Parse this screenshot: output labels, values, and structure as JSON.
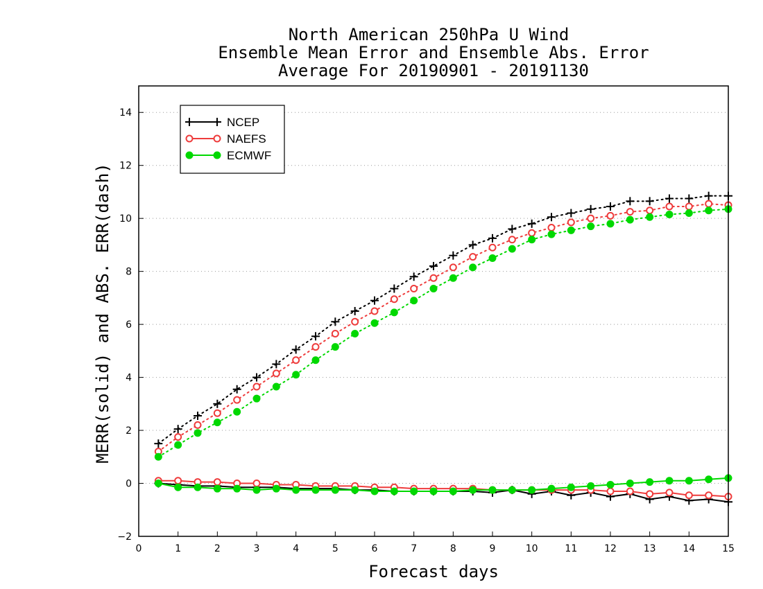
{
  "chart_data": {
    "type": "line",
    "title_lines": [
      "North American 250hPa U Wind",
      "Ensemble Mean Error and Ensemble Abs. Error",
      "Average For 20190901 - 20191130"
    ],
    "xlabel": "Forecast days",
    "ylabel": "MERR(solid) and ABS. ERR(dash)",
    "xlim": [
      0,
      15
    ],
    "ylim": [
      -2,
      15
    ],
    "xticks": [
      0,
      1,
      2,
      3,
      4,
      5,
      6,
      7,
      8,
      9,
      10,
      11,
      12,
      13,
      14,
      15
    ],
    "yticks": [
      -2,
      0,
      2,
      4,
      6,
      8,
      10,
      12,
      14
    ],
    "grid": "horizontal dotted",
    "legend_position": "top-left",
    "x": [
      0.5,
      1,
      1.5,
      2,
      2.5,
      3,
      3.5,
      4,
      4.5,
      5,
      5.5,
      6,
      6.5,
      7,
      7.5,
      8,
      8.5,
      9,
      9.5,
      10,
      10.5,
      11,
      11.5,
      12,
      12.5,
      13,
      13.5,
      14,
      14.5,
      15
    ],
    "series": [
      {
        "name": "NCEP",
        "color": "#000000",
        "marker": "plus",
        "abs_err": [
          1.5,
          2.05,
          2.55,
          3.0,
          3.55,
          4.0,
          4.5,
          5.05,
          5.55,
          6.1,
          6.5,
          6.9,
          7.35,
          7.8,
          8.2,
          8.6,
          9.0,
          9.25,
          9.6,
          9.8,
          10.05,
          10.2,
          10.35,
          10.45,
          10.65,
          10.65,
          10.75,
          10.75,
          10.85,
          10.85
        ],
        "mean_err": [
          0.0,
          -0.05,
          -0.1,
          -0.1,
          -0.15,
          -0.15,
          -0.15,
          -0.2,
          -0.2,
          -0.2,
          -0.25,
          -0.25,
          -0.3,
          -0.3,
          -0.3,
          -0.3,
          -0.3,
          -0.35,
          -0.25,
          -0.4,
          -0.3,
          -0.45,
          -0.35,
          -0.5,
          -0.4,
          -0.6,
          -0.5,
          -0.65,
          -0.6,
          -0.7
        ]
      },
      {
        "name": "NAEFS",
        "color": "#ee3b3b",
        "marker": "open-circle",
        "abs_err": [
          1.2,
          1.75,
          2.2,
          2.65,
          3.15,
          3.65,
          4.15,
          4.65,
          5.15,
          5.65,
          6.1,
          6.5,
          6.95,
          7.35,
          7.75,
          8.15,
          8.55,
          8.9,
          9.2,
          9.45,
          9.65,
          9.85,
          10.0,
          10.1,
          10.25,
          10.3,
          10.45,
          10.45,
          10.55,
          10.5
        ],
        "mean_err": [
          0.1,
          0.1,
          0.05,
          0.05,
          0.0,
          0.0,
          -0.05,
          -0.05,
          -0.1,
          -0.1,
          -0.1,
          -0.15,
          -0.15,
          -0.2,
          -0.2,
          -0.2,
          -0.2,
          -0.25,
          -0.25,
          -0.25,
          -0.25,
          -0.25,
          -0.25,
          -0.3,
          -0.3,
          -0.4,
          -0.35,
          -0.45,
          -0.45,
          -0.5
        ]
      },
      {
        "name": "ECMWF",
        "color": "#00d800",
        "marker": "filled-circle",
        "abs_err": [
          1.0,
          1.45,
          1.9,
          2.3,
          2.7,
          3.2,
          3.65,
          4.1,
          4.65,
          5.15,
          5.65,
          6.05,
          6.45,
          6.9,
          7.35,
          7.75,
          8.15,
          8.5,
          8.85,
          9.2,
          9.4,
          9.55,
          9.7,
          9.8,
          9.95,
          10.05,
          10.15,
          10.2,
          10.3,
          10.35
        ],
        "mean_err": [
          0.0,
          -0.15,
          -0.15,
          -0.2,
          -0.2,
          -0.25,
          -0.2,
          -0.25,
          -0.25,
          -0.25,
          -0.25,
          -0.3,
          -0.3,
          -0.3,
          -0.3,
          -0.3,
          -0.25,
          -0.25,
          -0.25,
          -0.25,
          -0.2,
          -0.15,
          -0.1,
          -0.05,
          0.0,
          0.05,
          0.1,
          0.1,
          0.15,
          0.2
        ]
      }
    ]
  }
}
